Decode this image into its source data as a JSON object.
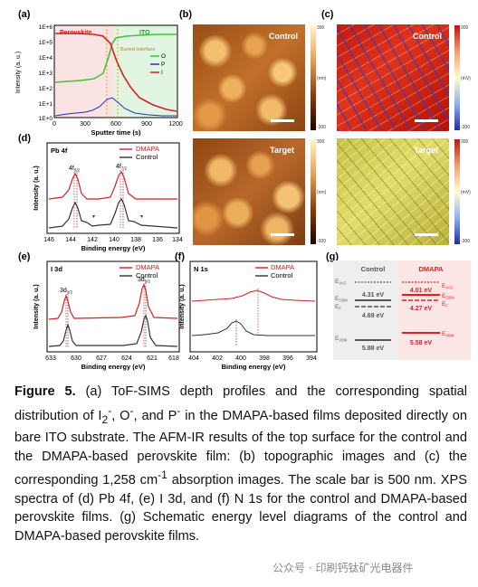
{
  "panels": {
    "a": {
      "letter": "(a)",
      "region_left": "Perovskite",
      "region_right": "ITO",
      "buried_label": "Buried interface",
      "ylabel": "Intensity (a. u.)",
      "xlabel": "Sputter time (s)",
      "yticks": [
        "1E+6",
        "1E+5",
        "1E+4",
        "1E+3",
        "1E+2",
        "1E+1",
        "1E+0"
      ],
      "xticks": [
        "0",
        "300",
        "600",
        "900",
        "1200"
      ],
      "legend": [
        "O",
        "P",
        "I"
      ],
      "colors": {
        "O": "#3ec43e",
        "P": "#1f2fbf",
        "I": "#d42020"
      }
    },
    "b": {
      "letter": "(b)",
      "top_label": "Control",
      "bottom_label": "Target",
      "cbar_top": "300",
      "cbar_bottom": "-300",
      "cbar_unit": "(nm)"
    },
    "c": {
      "letter": "(c)",
      "top_label": "Control",
      "bottom_label": "Target",
      "cbar_top": "300",
      "cbar_bottom": "-300",
      "cbar_unit": "(mV)"
    },
    "d": {
      "letter": "(d)",
      "title": "Pb 4f",
      "legend": [
        "DMAPA",
        "Control"
      ],
      "peak1": "4f",
      "peak1_sub": "5/2",
      "peak2": "4f",
      "peak2_sub": "7/2",
      "xticks": [
        "146",
        "144",
        "142",
        "140",
        "138",
        "136",
        "134"
      ],
      "ylabel": "Intensity (a. u.)",
      "xlabel": "Binding energy (eV)"
    },
    "e": {
      "letter": "(e)",
      "title": "I 3d",
      "legend": [
        "DMAPA",
        "Control"
      ],
      "peak1": "3d",
      "peak1_sub": "3/2",
      "peak2": "3d",
      "peak2_sub": "5/2",
      "xticks": [
        "633",
        "630",
        "627",
        "624",
        "621",
        "618"
      ],
      "ylabel": "Intensity (a. u.)",
      "xlabel": "Binding energy (eV)"
    },
    "f": {
      "letter": "(f)",
      "title": "N 1s",
      "legend": [
        "DMAPA",
        "Control"
      ],
      "xticks": [
        "404",
        "402",
        "400",
        "398",
        "396",
        "394"
      ],
      "ylabel": "Intensity (a. u.)",
      "xlabel": "Binding energy (eV)"
    },
    "g": {
      "letter": "(g)",
      "col_control": "Control",
      "col_dmapa": "DMAPA",
      "evac": "E",
      "evac_sub": "VAC",
      "ecbm": "E",
      "ecbm_sub": "CBM",
      "ef": "E",
      "ef_sub": "F",
      "evbm": "E",
      "evbm_sub": "VBM",
      "ctrl_cbm": "4.31 eV",
      "ctrl_ef": "4.69 eV",
      "ctrl_vbm": "5.88 eV",
      "dm_cbm": "4.01 eV",
      "dm_ef": "4.27 eV",
      "dm_vbm": "5.58 eV"
    }
  },
  "caption": {
    "lead": "Figure 5.",
    "text_1": " (a) ToF-SIMS depth profiles and the corresponding spatial distribution of I",
    "sub_1": "2",
    "sup_1": "-",
    "text_2": ", O",
    "sup_2": "-",
    "text_3": ", and P",
    "sup_3": "-",
    "text_4": " in the DMAPA-based films deposited directly on bare ITO substrate. The AFM-IR results of the top surface for the control and the DMAPA-based perovskite film: (b) topographic images and (c) the corresponding 1,258 cm",
    "sup_4": "-1",
    "text_5": " absorption images. The scale bar is 500 nm. XPS spectra of (d) Pb 4f, (e) I 3d, and (f) N 1s for the control and DMAPA-based perovskite films. (g) Schematic energy level diagrams of the control and DMAPA-based perovskite films."
  },
  "watermark": "公众号 · 印刷钙钛矿光电器件",
  "chart_data": [
    {
      "type": "line",
      "panel": "a",
      "xlabel": "Sputter time (s)",
      "ylabel": "Intensity (a. u.)",
      "xlim": [
        0,
        1200
      ],
      "ylim": [
        "1E+0",
        "1E+6"
      ],
      "yscale": "log",
      "series": [
        {
          "name": "O",
          "x": [
            0,
            300,
            400,
            500,
            560,
            600,
            700,
            900,
            1200
          ],
          "y": [
            300,
            400,
            700,
            2000,
            30000,
            100000,
            150000,
            170000,
            190000
          ]
        },
        {
          "name": "P",
          "x": [
            0,
            300,
            450,
            550,
            600,
            700,
            900,
            1200
          ],
          "y": [
            1.5,
            3,
            5,
            15,
            10,
            3,
            1.5,
            1.2
          ]
        },
        {
          "name": "I",
          "x": [
            0,
            200,
            400,
            500,
            600,
            700,
            800,
            1000,
            1200
          ],
          "y": [
            300000,
            300000,
            300000,
            200000,
            20000,
            1000,
            100,
            15,
            5
          ]
        }
      ]
    },
    {
      "type": "line",
      "panel": "d",
      "xlabel": "Binding energy (eV)",
      "ylabel": "Intensity (a. u.)",
      "xlim": [
        146,
        134
      ],
      "series": [
        {
          "name": "DMAPA",
          "peaks_eV": [
            143.1,
            138.2
          ]
        },
        {
          "name": "Control",
          "peaks_eV": [
            143.3,
            138.4
          ]
        }
      ]
    },
    {
      "type": "line",
      "panel": "e",
      "xlabel": "Binding energy (eV)",
      "ylabel": "Intensity (a. u.)",
      "xlim": [
        633,
        618
      ],
      "series": [
        {
          "name": "DMAPA",
          "peaks_eV": [
            630.6,
            619.2
          ]
        },
        {
          "name": "Control",
          "peaks_eV": [
            630.2,
            618.8
          ]
        }
      ]
    },
    {
      "type": "line",
      "panel": "f",
      "xlabel": "Binding energy (eV)",
      "ylabel": "Intensity (a. u.)",
      "xlim": [
        404,
        394
      ],
      "series": [
        {
          "name": "DMAPA",
          "peaks_eV": [
            399.4
          ]
        },
        {
          "name": "Control",
          "peaks_eV": [
            400.2
          ]
        }
      ]
    }
  ]
}
